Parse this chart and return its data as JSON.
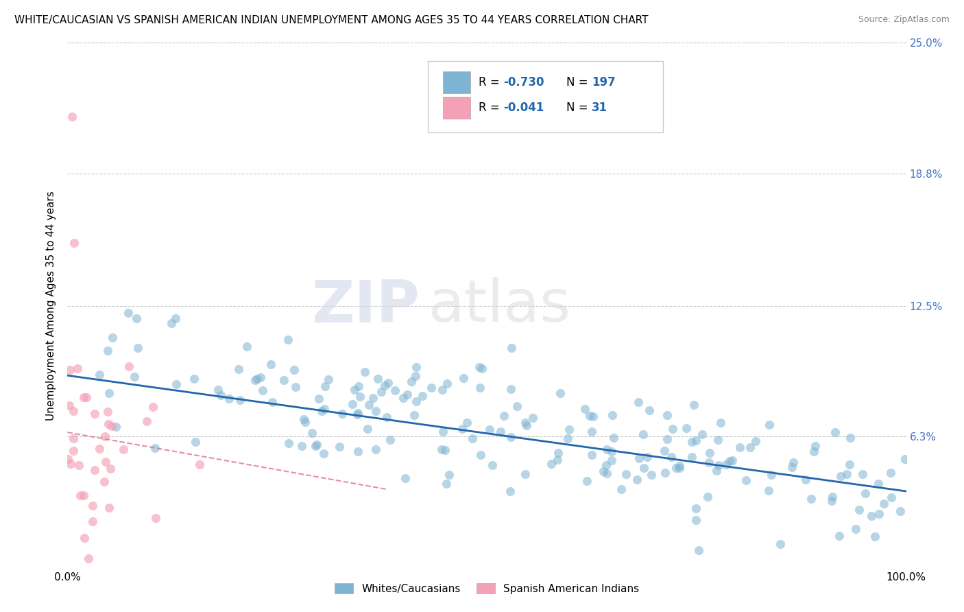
{
  "title": "WHITE/CAUCASIAN VS SPANISH AMERICAN INDIAN UNEMPLOYMENT AMONG AGES 35 TO 44 YEARS CORRELATION CHART",
  "source": "Source: ZipAtlas.com",
  "ylabel": "Unemployment Among Ages 35 to 44 years",
  "xlim": [
    0,
    1
  ],
  "ylim": [
    0,
    0.25
  ],
  "ytick_vals": [
    0.0,
    0.063,
    0.125,
    0.188,
    0.25
  ],
  "ytick_labels": [
    "",
    "6.3%",
    "12.5%",
    "18.8%",
    "25.0%"
  ],
  "xtick_vals": [
    0.0,
    1.0
  ],
  "xtick_labels": [
    "0.0%",
    "100.0%"
  ],
  "blue_color": "#7fb3d3",
  "pink_color": "#f4a0b5",
  "blue_line_color": "#2166ac",
  "pink_line_color": "#e07090",
  "legend_blue_label": "Whites/Caucasians",
  "legend_pink_label": "Spanish American Indians",
  "r_blue": -0.73,
  "n_blue": 197,
  "r_pink": -0.041,
  "n_pink": 31,
  "watermark_zip": "ZIP",
  "watermark_atlas": "atlas",
  "background_color": "#ffffff",
  "grid_color": "#c8c8c8",
  "title_fontsize": 11,
  "axis_label_fontsize": 11,
  "tick_fontsize": 11,
  "right_ytick_color": "#4472c4",
  "legend_text_color": "#2166ac",
  "blue_line_start_y": 0.092,
  "blue_line_end_y": 0.037,
  "pink_line_start_x": 0.0,
  "pink_line_start_y": 0.065,
  "pink_line_end_x": 0.38,
  "pink_line_end_y": 0.038
}
